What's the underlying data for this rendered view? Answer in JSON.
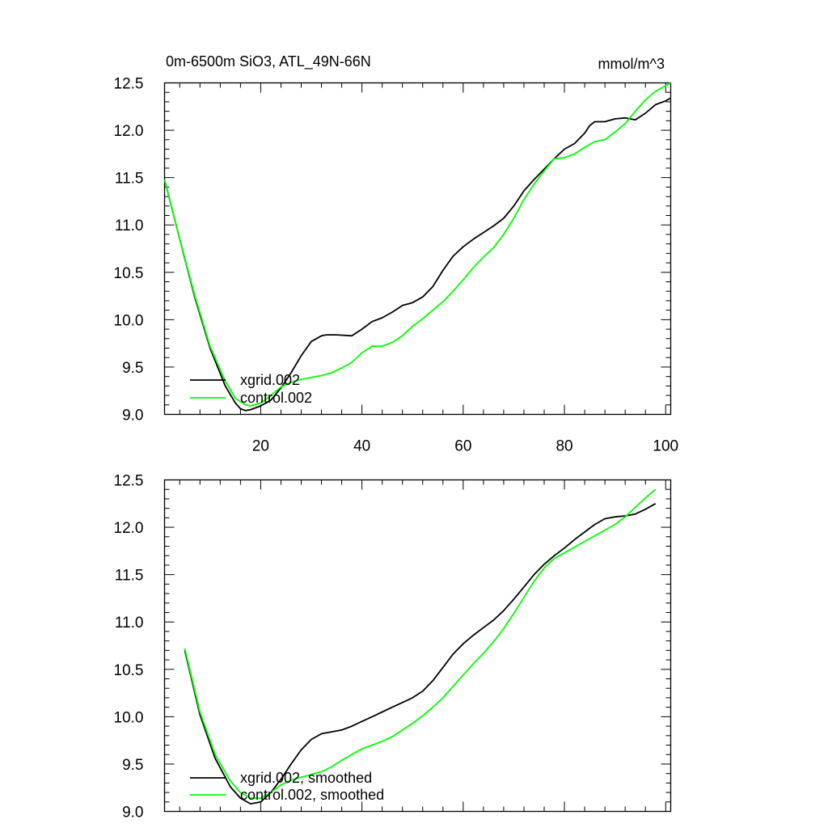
{
  "chart_data": [
    {
      "type": "line",
      "title": "0m-6500m SiO3, ATL_49N-66N",
      "units": "mmol/m^3",
      "xlim": [
        1,
        101
      ],
      "ylim": [
        9.0,
        12.5
      ],
      "xticks": [
        20,
        40,
        60,
        80,
        100
      ],
      "xtick_labels": [
        "20",
        "40",
        "60",
        "80",
        "100"
      ],
      "yticks": [
        9.0,
        9.5,
        10.0,
        10.5,
        11.0,
        11.5,
        12.0,
        12.5
      ],
      "ytick_labels": [
        "9.0",
        "9.5",
        "10.0",
        "10.5",
        "11.0",
        "11.5",
        "12.0",
        "12.5"
      ],
      "legend_position": "bottom-left",
      "series": [
        {
          "name": "xgrid.002",
          "color": "#000000",
          "x": [
            1,
            4,
            7,
            10,
            13,
            15,
            16,
            17,
            18,
            20,
            22,
            24,
            26,
            28,
            30,
            32,
            33,
            35,
            38,
            40,
            42,
            44,
            46,
            48,
            50,
            52,
            54,
            56,
            58,
            60,
            62,
            64,
            66,
            68,
            70,
            72,
            74,
            76,
            78,
            80,
            82,
            84,
            85,
            86,
            88,
            90,
            92,
            94,
            96,
            98,
            100,
            101
          ],
          "y": [
            11.48,
            10.85,
            10.23,
            9.7,
            9.3,
            9.12,
            9.06,
            9.04,
            9.05,
            9.09,
            9.15,
            9.28,
            9.44,
            9.62,
            9.77,
            9.83,
            9.84,
            9.84,
            9.83,
            9.9,
            9.98,
            10.02,
            10.08,
            10.15,
            10.18,
            10.24,
            10.35,
            10.52,
            10.67,
            10.77,
            10.85,
            10.92,
            10.99,
            11.07,
            11.2,
            11.36,
            11.48,
            11.59,
            11.7,
            11.8,
            11.86,
            11.97,
            12.05,
            12.09,
            12.09,
            12.12,
            12.13,
            12.11,
            12.18,
            12.27,
            12.31,
            12.34
          ]
        },
        {
          "name": "control.002",
          "color": "#00ff00",
          "x": [
            1,
            4,
            7,
            10,
            13,
            15,
            17,
            18,
            20,
            22,
            24,
            26,
            28,
            30,
            32,
            34,
            36,
            38,
            40,
            42,
            44,
            46,
            48,
            50,
            52,
            54,
            56,
            58,
            60,
            62,
            64,
            66,
            68,
            70,
            72,
            74,
            76,
            78,
            80,
            82,
            84,
            86,
            88,
            90,
            92,
            94,
            96,
            98,
            100,
            101
          ],
          "y": [
            11.48,
            10.85,
            10.25,
            9.72,
            9.35,
            9.17,
            9.1,
            9.09,
            9.12,
            9.2,
            9.29,
            9.34,
            9.37,
            9.39,
            9.41,
            9.44,
            9.49,
            9.55,
            9.65,
            9.72,
            9.72,
            9.76,
            9.83,
            9.93,
            10.01,
            10.1,
            10.19,
            10.3,
            10.42,
            10.55,
            10.66,
            10.76,
            10.9,
            11.07,
            11.27,
            11.43,
            11.57,
            11.7,
            11.71,
            11.75,
            11.82,
            11.88,
            11.9,
            11.98,
            12.07,
            12.2,
            12.32,
            12.41,
            12.47,
            12.5
          ]
        }
      ]
    },
    {
      "type": "line",
      "xlim": [
        1,
        101
      ],
      "ylim": [
        9.0,
        12.5
      ],
      "yticks": [
        9.0,
        9.5,
        10.0,
        10.5,
        11.0,
        11.5,
        12.0,
        12.5
      ],
      "ytick_labels": [
        "9.0",
        "9.5",
        "10.0",
        "10.5",
        "11.0",
        "11.5",
        "12.0",
        "12.5"
      ],
      "legend_position": "bottom-left",
      "series": [
        {
          "name": "xgrid.002, smoothed",
          "color": "#000000",
          "x": [
            5,
            8,
            11,
            14,
            16,
            18,
            20,
            22,
            24,
            26,
            28,
            30,
            32,
            34,
            36,
            38,
            40,
            42,
            44,
            46,
            48,
            50,
            52,
            54,
            56,
            58,
            60,
            62,
            64,
            66,
            68,
            70,
            72,
            74,
            76,
            78,
            80,
            82,
            84,
            86,
            88,
            90,
            92,
            94,
            96,
            98
          ],
          "y": [
            10.7,
            10.02,
            9.56,
            9.26,
            9.14,
            9.08,
            9.1,
            9.2,
            9.34,
            9.5,
            9.65,
            9.76,
            9.82,
            9.84,
            9.86,
            9.9,
            9.95,
            10.0,
            10.05,
            10.1,
            10.15,
            10.2,
            10.27,
            10.38,
            10.52,
            10.66,
            10.77,
            10.86,
            10.94,
            11.02,
            11.12,
            11.24,
            11.37,
            11.5,
            11.61,
            11.7,
            11.78,
            11.87,
            11.95,
            12.03,
            12.09,
            12.11,
            12.12,
            12.14,
            12.19,
            12.25
          ]
        },
        {
          "name": "control.002, smoothed",
          "color": "#00ff00",
          "x": [
            5,
            8,
            11,
            14,
            16,
            18,
            20,
            22,
            24,
            26,
            28,
            30,
            32,
            34,
            36,
            38,
            40,
            42,
            44,
            46,
            48,
            50,
            52,
            54,
            56,
            58,
            60,
            62,
            64,
            66,
            68,
            70,
            72,
            74,
            76,
            78,
            80,
            82,
            84,
            86,
            88,
            90,
            92,
            94,
            96,
            98
          ],
          "y": [
            10.72,
            10.05,
            9.6,
            9.32,
            9.2,
            9.14,
            9.14,
            9.2,
            9.28,
            9.33,
            9.36,
            9.39,
            9.42,
            9.47,
            9.54,
            9.6,
            9.66,
            9.7,
            9.74,
            9.79,
            9.86,
            9.93,
            10.01,
            10.1,
            10.2,
            10.32,
            10.44,
            10.56,
            10.67,
            10.79,
            10.93,
            11.09,
            11.26,
            11.43,
            11.57,
            11.67,
            11.73,
            11.79,
            11.85,
            11.91,
            11.97,
            12.03,
            12.11,
            12.21,
            12.31,
            12.4
          ]
        }
      ]
    }
  ]
}
